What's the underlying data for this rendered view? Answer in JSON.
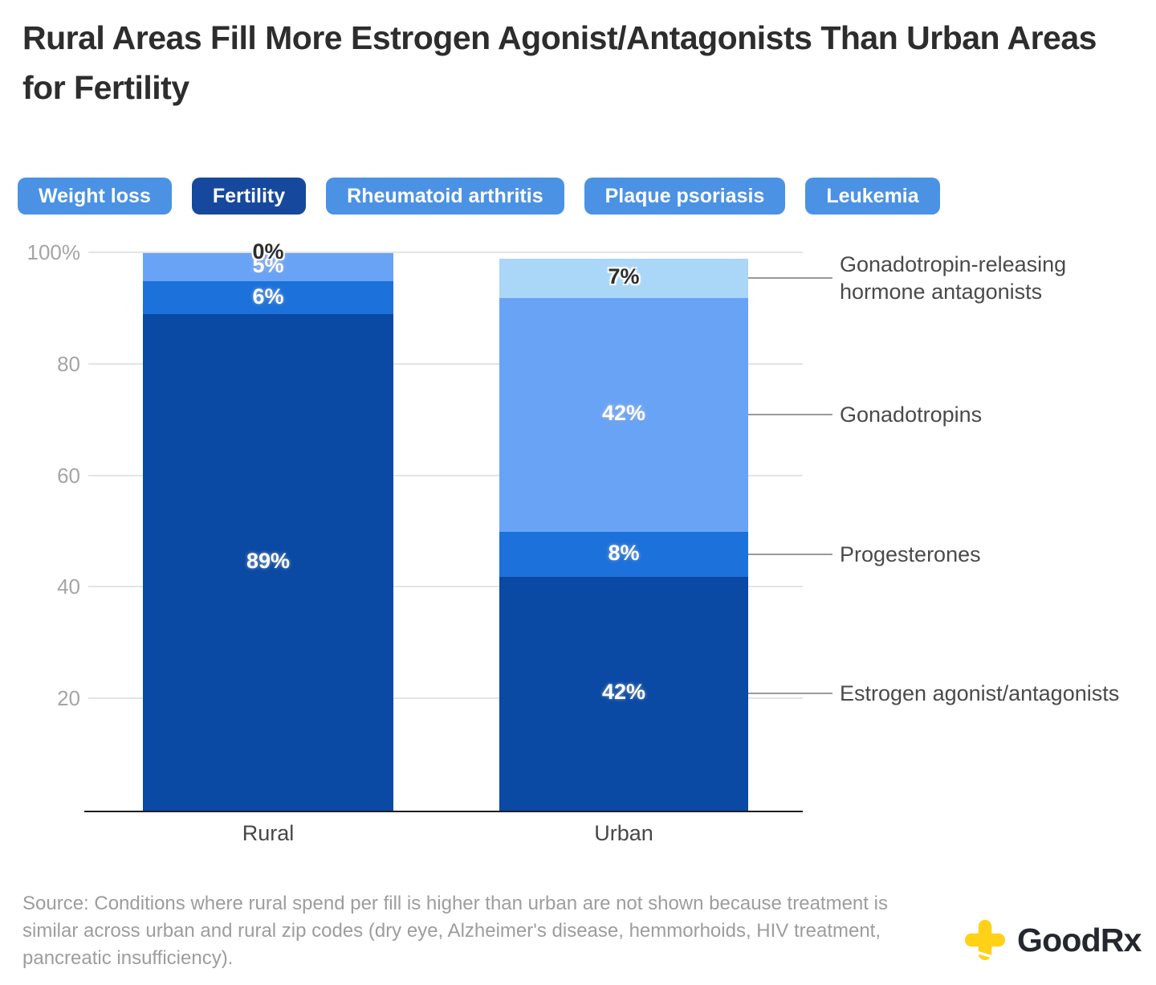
{
  "header": {
    "title": "Rural Areas Fill More Estrogen Agonist/Antagonists Than Urban Areas for Fertility"
  },
  "tabs": {
    "items": [
      {
        "label": "Weight loss",
        "selected": false
      },
      {
        "label": "Fertility",
        "selected": true
      },
      {
        "label": "Rheumatoid arthritis",
        "selected": false
      },
      {
        "label": "Plaque psoriasis",
        "selected": false
      },
      {
        "label": "Leukemia",
        "selected": false
      }
    ],
    "colors": {
      "default_bg": "#4b92e5",
      "selected_bg": "#16499d",
      "text": "#ffffff"
    }
  },
  "chart_data": {
    "type": "bar",
    "subtype": "stacked-vertical",
    "categories": [
      "Rural",
      "Urban"
    ],
    "series": [
      {
        "name": "Estrogen agonist/antagonists",
        "color": "#0a49a4",
        "label_color": "#ffffff",
        "values": [
          89,
          42
        ]
      },
      {
        "name": "Progesterones",
        "color": "#1c71da",
        "label_color": "#ffffff",
        "values": [
          6,
          8
        ]
      },
      {
        "name": "Gonadotropins",
        "color": "#69a3f6",
        "label_color": "#ffffff",
        "values": [
          5,
          42
        ]
      },
      {
        "name": "Gonadotropin-releasing hormone antagonists",
        "color": "#aad6f8",
        "label_color": "#2d2d2d",
        "values": [
          0,
          7
        ]
      }
    ],
    "value_suffix": "%",
    "ylim": [
      0,
      100
    ],
    "yticks": [
      20,
      40,
      60,
      80,
      100
    ],
    "ytick_labels": [
      "20",
      "40",
      "60",
      "80",
      "100%"
    ],
    "grid": true,
    "legend_position": "right-annotations",
    "annotation_colors": {
      "leader_line": "#9a9a9a",
      "label_text": "#4a4a4a"
    },
    "axis_colors": {
      "baseline": "#1f1f1f",
      "gridline": "#e4e4e4",
      "ytick_text": "#a5a5a5",
      "xtick_text": "#474747"
    }
  },
  "footer": {
    "source": "Source: Conditions where rural spend per fill is higher than urban are not shown because treatment is similar across urban and rural zip codes (dry eye, Alzheimer's disease, hemmorhoids, HIV treatment, pancreatic insufficiency).",
    "logo": {
      "brand_good": "Good",
      "brand_rx": "Rx",
      "cross_color": "#ffd117",
      "text_color": "#25272e"
    }
  }
}
